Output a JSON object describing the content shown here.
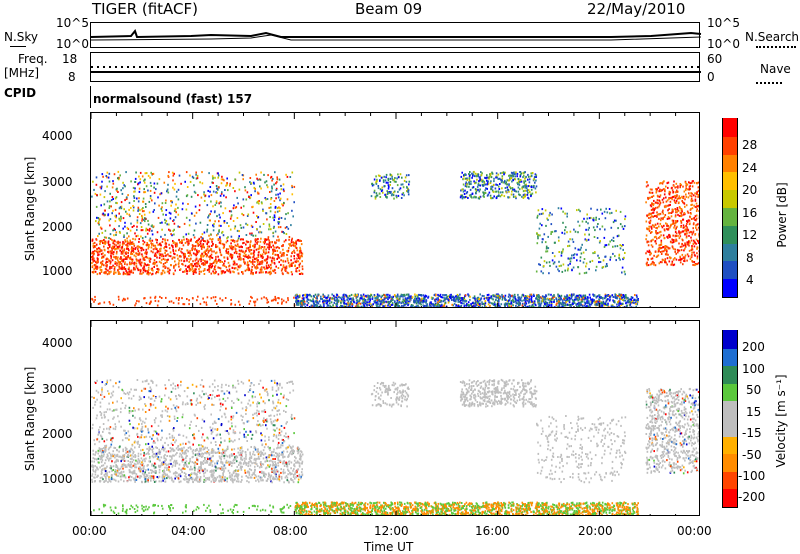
{
  "header": {
    "radar": "TIGER (fitACF)",
    "beam": "Beam 09",
    "date": "22/May/2010"
  },
  "status_panel": {
    "nsky_label": "N.Sky",
    "nsky_ticks": [
      "10^5",
      "10^0"
    ],
    "nsearch_label": "N.Search",
    "nsearch_ticks": [
      "10^5",
      "10^0"
    ],
    "freq_label": "Freq.",
    "freq_unit": "[MHz]",
    "freq_ticks": [
      "18",
      "8"
    ],
    "nave_label": "Nave",
    "nave_ticks": [
      "60",
      "0"
    ],
    "cpid_label": "CPID",
    "cpid_value": "normalsound (fast) 157"
  },
  "chart_data": [
    {
      "type": "heatmap",
      "panel": "power",
      "ylabel": "Slant Range [km]",
      "xlabel": "",
      "x_ticks": [
        "00:00",
        "04:00",
        "08:00",
        "12:00",
        "16:00",
        "20:00",
        "00:00"
      ],
      "y_ticks": [
        "1000",
        "2000",
        "3000",
        "4000"
      ],
      "ylim": [
        200,
        4600
      ],
      "colorbar": {
        "label": "Power [dB]",
        "ticks": [
          "28",
          "24",
          "20",
          "16",
          "12",
          "8",
          "4"
        ],
        "range": [
          0,
          32
        ],
        "colors": [
          "#0000ff",
          "#1f4fc2",
          "#2e7f9e",
          "#2f8f5a",
          "#64b33f",
          "#c8c800",
          "#ffbf00",
          "#ff8000",
          "#ff4000",
          "#ff0000"
        ]
      }
    },
    {
      "type": "heatmap",
      "panel": "velocity",
      "ylabel": "Slant Range [km]",
      "xlabel": "Time UT",
      "x_ticks": [
        "00:00",
        "04:00",
        "08:00",
        "12:00",
        "16:00",
        "20:00",
        "00:00"
      ],
      "y_ticks": [
        "1000",
        "2000",
        "3000",
        "4000"
      ],
      "ylim": [
        200,
        4600
      ],
      "colorbar": {
        "label": "Velocity [m s⁻¹]",
        "ticks": [
          "200",
          "100",
          "50",
          "15",
          "-15",
          "-50",
          "-100",
          "-200"
        ],
        "range": [
          -250,
          250
        ],
        "colors": [
          "#ff0000",
          "#ff4500",
          "#ff8c00",
          "#ffb000",
          "#bebebe",
          "#bebebe",
          "#5ac83c",
          "#2e8b57",
          "#1e6ed2",
          "#0000cd"
        ]
      }
    }
  ]
}
